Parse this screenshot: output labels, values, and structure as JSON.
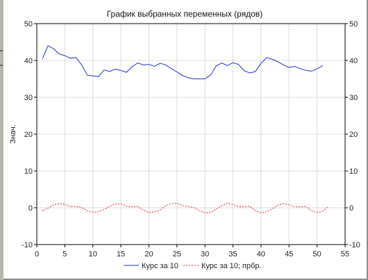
{
  "chart_data": {
    "type": "line",
    "title": "График выбранных переменных (рядов)",
    "xlabel": "",
    "ylabel": "Знач.",
    "xlim": [
      0,
      55
    ],
    "ylim": [
      -10,
      50
    ],
    "x_ticks": [
      0,
      5,
      10,
      15,
      20,
      25,
      30,
      35,
      40,
      45,
      50,
      55
    ],
    "y_ticks": [
      -10,
      0,
      10,
      20,
      30,
      40,
      50
    ],
    "grid": true,
    "legend_position": "bottom",
    "series": [
      {
        "name": "Курс за 10",
        "color": "#1f2fd0",
        "style": "solid",
        "x": [
          1,
          2,
          3,
          4,
          5,
          6,
          7,
          8,
          9,
          10,
          11,
          12,
          13,
          14,
          15,
          16,
          17,
          18,
          19,
          20,
          21,
          22,
          23,
          24,
          25,
          26,
          27,
          28,
          29,
          30,
          31,
          32,
          33,
          34,
          35,
          36,
          37,
          38,
          39,
          40,
          41,
          42,
          43,
          44,
          45,
          46,
          47,
          48,
          49,
          50,
          51,
          52
        ],
        "values": [
          40.5,
          44,
          43.2,
          41.8,
          41.3,
          40.6,
          40.8,
          38.8,
          36,
          35.8,
          35.6,
          37.4,
          37,
          37.6,
          37.3,
          36.8,
          38.3,
          39.3,
          38.8,
          38.9,
          38.4,
          39.2,
          38.8,
          37.8,
          36.9,
          35.9,
          35.3,
          35,
          35,
          35,
          36,
          38.5,
          39.3,
          38.6,
          39.4,
          38.9,
          37.2,
          36.6,
          37,
          39.2,
          40.8,
          40.3,
          39.7,
          38.8,
          38.1,
          38.4,
          37.8,
          37.3,
          37.1,
          37.7,
          38.6,
          null
        ],
        "label": "Курс за 10"
      },
      {
        "name": "Курс за 10; прбр.",
        "color": "#e0201a",
        "style": "dashed",
        "x": [
          1,
          2,
          3,
          4,
          5,
          6,
          7,
          8,
          9,
          10,
          11,
          12,
          13,
          14,
          15,
          16,
          17,
          18,
          19,
          20,
          21,
          22,
          23,
          24,
          25,
          26,
          27,
          28,
          29,
          30,
          31,
          32,
          33,
          34,
          35,
          36,
          37,
          38,
          39,
          40,
          41,
          42,
          43,
          44,
          45,
          46,
          47,
          48,
          49,
          50,
          51,
          52
        ],
        "values": [
          -0.8,
          -0.1,
          0.8,
          1.1,
          0.9,
          0.3,
          0.3,
          0.1,
          -0.8,
          -1.2,
          -1.1,
          -0.5,
          0.4,
          1,
          1.1,
          0.4,
          0.2,
          0.3,
          -0.6,
          -1.3,
          -1.1,
          -0.6,
          0.6,
          1.1,
          1.2,
          0.6,
          0.3,
          0.1,
          -0.8,
          -1.4,
          -1.3,
          -0.4,
          0.6,
          1.2,
          0.9,
          0.3,
          0.2,
          0.4,
          -0.8,
          -1.4,
          -1.1,
          -0.3,
          0.7,
          1.1,
          0.8,
          0.3,
          0.2,
          0.3,
          -0.8,
          -1.3,
          -1,
          0.3
        ],
        "label": "Курс за 10; прбр."
      }
    ]
  }
}
